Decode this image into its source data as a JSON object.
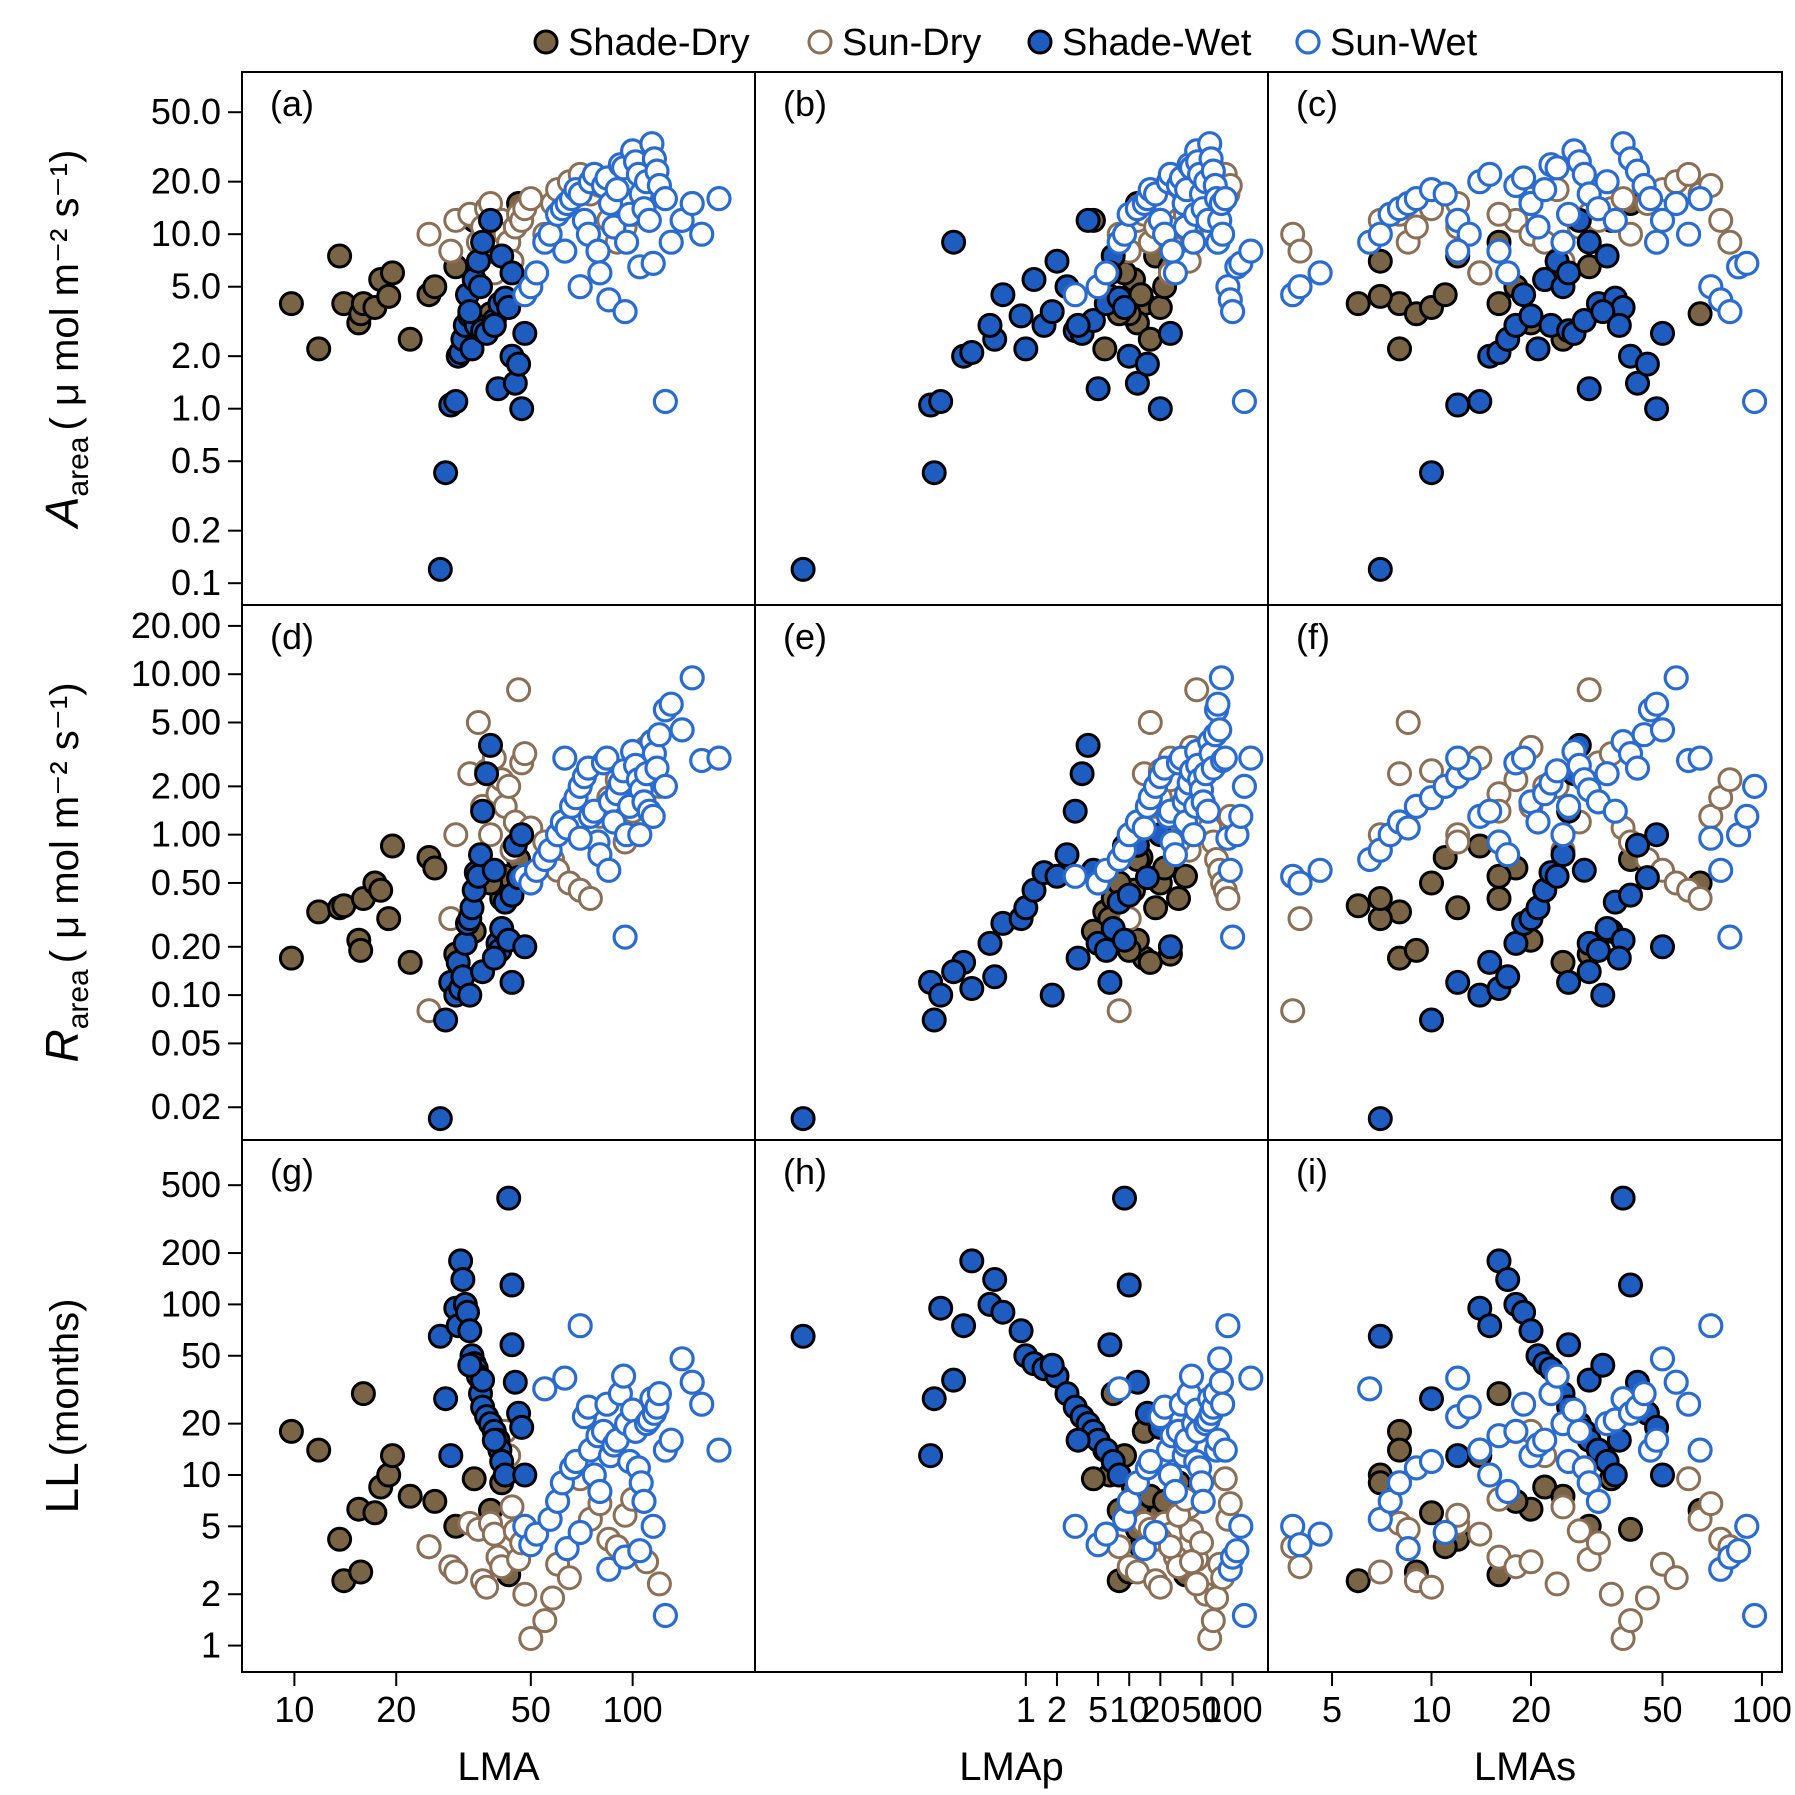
{
  "colors": {
    "shade_dry_fill": "#7a6446",
    "sun_dry_stroke": "#8a6e55",
    "shade_wet_fill": "#1f5cbf",
    "sun_wet_stroke": "#2a6bd0",
    "frame": "#000000"
  },
  "legend": {
    "position": "top-center",
    "items": [
      {
        "label": "Shade-Dry",
        "style": "filled-brown"
      },
      {
        "label": "Sun-Dry",
        "style": "open-brown"
      },
      {
        "label": "Shade-Wet",
        "style": "filled-blue"
      },
      {
        "label": "Sun-Wet",
        "style": "open-blue"
      }
    ]
  },
  "axes": {
    "rows": [
      {
        "key": "A",
        "title_main": "A",
        "title_sub": "area",
        "title_units": "( μ mol m⁻² s⁻¹)",
        "scale": "log",
        "ticks": [
          "0.1",
          "0.2",
          "0.5",
          "1.0",
          "2.0",
          "5.0",
          "10.0",
          "20.0",
          "50.0"
        ]
      },
      {
        "key": "R",
        "title_main": "R",
        "title_sub": "area",
        "title_units": "( μ mol m⁻² s⁻¹)",
        "scale": "log",
        "ticks": [
          "0.02",
          "0.05",
          "0.10",
          "0.20",
          "0.50",
          "1.00",
          "2.00",
          "5.00",
          "10.00",
          "20.00"
        ]
      },
      {
        "key": "LL",
        "title_main": "LL",
        "title_sub": "",
        "title_units": "(months)",
        "scale": "log",
        "ticks": [
          "1",
          "2",
          "5",
          "10",
          "20",
          "50",
          "100",
          "200",
          "500"
        ]
      }
    ],
    "cols": [
      {
        "key": "LMA",
        "title": "LMA",
        "scale": "log",
        "ticks": [
          "10",
          "20",
          "50",
          "100"
        ]
      },
      {
        "key": "LMAp",
        "title": "LMAp",
        "scale": "log",
        "ticks": [
          "1",
          "2",
          "5",
          "10",
          "20",
          "50",
          "100"
        ]
      },
      {
        "key": "LMAs",
        "title": "LMAs",
        "scale": "log",
        "ticks": [
          "5",
          "10",
          "20",
          "50",
          "100"
        ]
      }
    ]
  },
  "panel_labels": [
    "(a)",
    "(b)",
    "(c)",
    "(d)",
    "(e)",
    "(f)",
    "(g)",
    "(h)",
    "(i)"
  ],
  "chart_data": {
    "type": "scatter",
    "grid": false,
    "xscale": "log",
    "yscale": "log",
    "xlim": {
      "LMA": [
        7,
        230
      ],
      "LMAp": [
        0.0024,
        220
      ],
      "LMAs": [
        3.2,
        115
      ]
    },
    "ylim": {
      "A": [
        0.075,
        85
      ],
      "R": [
        0.0125,
        27
      ],
      "LL": [
        0.7,
        920
      ]
    },
    "series": [
      {
        "name": "Shade-Dry",
        "x_LMA": [
          9.8,
          11.8,
          13.6,
          14,
          15.5,
          15.7,
          16,
          17.3,
          18,
          19,
          19.5,
          22,
          25,
          26,
          30,
          34,
          41,
          43,
          46,
          38
        ],
        "x_LMAp": [
          14,
          5.8,
          18,
          8,
          12,
          10,
          7,
          20,
          11,
          6.5,
          9,
          16,
          13,
          22,
          25,
          4.5,
          30,
          35,
          12,
          8
        ],
        "x_LMAs": [
          8,
          8,
          12,
          6,
          20,
          9,
          16,
          10,
          22,
          7,
          14,
          25,
          11,
          18,
          30,
          35,
          7,
          16,
          40,
          65
        ],
        "y_A": [
          4.0,
          2.2,
          7.5,
          4.0,
          3.1,
          3.5,
          4.0,
          3.8,
          5.5,
          4.4,
          6.0,
          2.5,
          4.5,
          5.0,
          6.5,
          12,
          7,
          9,
          15,
          3.5
        ],
        "y_R": [
          0.17,
          0.33,
          0.35,
          0.36,
          0.22,
          0.19,
          0.4,
          0.5,
          0.45,
          0.3,
          0.85,
          0.16,
          0.72,
          0.62,
          0.18,
          0.25,
          0.4,
          0.55,
          0.7,
          0.5
        ],
        "y_LL": [
          18,
          14,
          4.2,
          2.4,
          6.3,
          2.7,
          30,
          6,
          8.5,
          10,
          13,
          7.5,
          3.8,
          7,
          5,
          9.5,
          9,
          2.6,
          4.8,
          6.2
        ]
      },
      {
        "name": "Sun-Dry",
        "x_LMA": [
          25,
          29,
          30,
          33,
          35,
          36,
          37,
          38,
          39,
          40,
          41,
          42,
          43,
          44,
          45,
          46,
          47,
          48,
          50,
          55,
          58,
          60,
          65,
          70,
          75,
          80,
          85,
          90,
          95,
          100,
          110,
          120
        ],
        "x_LMAp": [
          8,
          10,
          12,
          14,
          16,
          18,
          20,
          22,
          25,
          28,
          30,
          32,
          35,
          38,
          40,
          45,
          50,
          55,
          60,
          65,
          70,
          75,
          80,
          85,
          90,
          95,
          20,
          25,
          30,
          35,
          40,
          45
        ],
        "x_LMAs": [
          3.8,
          4.0,
          7,
          8,
          8.5,
          9,
          10,
          12,
          14,
          16,
          18,
          20,
          22,
          25,
          28,
          30,
          32,
          35,
          38,
          40,
          45,
          50,
          55,
          60,
          65,
          70,
          75,
          80,
          12,
          16,
          20,
          24
        ],
        "y_A": [
          10,
          8,
          12,
          13,
          9,
          11,
          14,
          15,
          6,
          8,
          12,
          10,
          9,
          7,
          11,
          13,
          12,
          14,
          16,
          10,
          15,
          18,
          20,
          22,
          17,
          19,
          12,
          9,
          11,
          13,
          16,
          18
        ],
        "y_R": [
          0.08,
          0.3,
          1.0,
          2.4,
          5.0,
          1.5,
          2.5,
          1.0,
          3.0,
          1.8,
          2.2,
          1.5,
          2.0,
          0.8,
          1.2,
          8.0,
          2.8,
          3.2,
          1.1,
          0.9,
          0.7,
          0.6,
          0.5,
          0.45,
          0.4,
          1.3,
          1.7,
          2.2,
          0.9,
          1.4,
          3.5,
          2.0
        ],
        "y_LL": [
          3.8,
          2.9,
          2.7,
          5.2,
          4.8,
          2.4,
          2.2,
          5.2,
          4.5,
          3.3,
          2.9,
          18,
          13,
          6.5,
          4.7,
          3.2,
          4.0,
          2.0,
          1.1,
          1.4,
          1.9,
          3.0,
          2.5,
          9.5,
          5.5,
          6.8,
          4.2,
          3.8,
          5.8,
          7.2,
          3.1,
          2.3
        ]
      },
      {
        "name": "Shade-Wet",
        "x_LMA": [
          27,
          28,
          29,
          30,
          30.5,
          31,
          31.5,
          32,
          32.5,
          33,
          33.5,
          34,
          34.5,
          35,
          35.5,
          36,
          37,
          38,
          39,
          40,
          40.5,
          41,
          42,
          43,
          44,
          45,
          46,
          47,
          48,
          36,
          33,
          39,
          44
        ],
        "x_LMAp": [
          0.007,
          0.13,
          0.12,
          0.15,
          0.25,
          0.3,
          0.5,
          0.45,
          0.6,
          0.9,
          1.0,
          1.2,
          1.5,
          2.0,
          2.5,
          3.0,
          3.5,
          4.0,
          4.5,
          5.0,
          6.0,
          7.0,
          8.0,
          9.0,
          10,
          12,
          15,
          20,
          25,
          0.2,
          1.8,
          3.2,
          6.5
        ],
        "x_LMAs": [
          7,
          10,
          12,
          14,
          15,
          16,
          17,
          18,
          19,
          20,
          21,
          22,
          23,
          24,
          25,
          26,
          27,
          28,
          29,
          30,
          32,
          34,
          36,
          38,
          40,
          42,
          45,
          48,
          50,
          30,
          33,
          37,
          26
        ],
        "y_A": [
          0.12,
          0.43,
          1.05,
          1.1,
          2.0,
          2.1,
          2.5,
          3.0,
          4.5,
          3.4,
          2.2,
          5.5,
          3.0,
          7.0,
          5.0,
          2.8,
          2.7,
          12,
          3.2,
          1.3,
          4.0,
          7.5,
          4.3,
          3.8,
          2.0,
          1.4,
          1.8,
          1.0,
          2.7,
          9.0,
          3.6,
          3.0,
          6.0
        ],
        "y_R": [
          0.017,
          0.07,
          0.12,
          0.1,
          0.16,
          0.11,
          0.13,
          0.21,
          0.28,
          0.3,
          0.35,
          0.45,
          0.58,
          0.55,
          0.75,
          1.4,
          2.4,
          3.6,
          0.6,
          0.21,
          0.19,
          0.26,
          0.38,
          0.22,
          0.42,
          0.86,
          0.54,
          1.0,
          0.2,
          0.14,
          0.1,
          0.17,
          0.12
        ],
        "y_LL": [
          65,
          28,
          13,
          95,
          75,
          180,
          140,
          100,
          90,
          70,
          50,
          45,
          42,
          38,
          30,
          25,
          22,
          20,
          18,
          16,
          14,
          12,
          10,
          420,
          130,
          35,
          23,
          19,
          10,
          36,
          44,
          16,
          58
        ]
      },
      {
        "name": "Sun-Wet",
        "x_LMA": [
          48,
          50,
          52,
          55,
          57,
          60,
          62,
          64,
          66,
          68,
          70,
          72,
          74,
          75,
          77,
          79,
          80,
          82,
          84,
          86,
          88,
          90,
          92,
          94,
          96,
          98,
          100,
          102,
          104,
          106,
          108,
          110,
          112,
          114,
          116,
          118,
          120,
          125,
          130,
          140,
          150,
          160,
          180,
          70,
          85,
          95,
          105,
          115,
          125,
          63
        ],
        "x_LMAp": [
          3,
          5,
          6,
          8,
          9,
          10,
          12,
          14,
          15,
          16,
          18,
          20,
          22,
          24,
          25,
          26,
          28,
          30,
          32,
          34,
          35,
          36,
          38,
          40,
          42,
          44,
          45,
          46,
          48,
          50,
          52,
          55,
          58,
          60,
          62,
          65,
          68,
          70,
          72,
          75,
          78,
          80,
          85,
          90,
          95,
          100,
          110,
          120,
          130,
          150
        ],
        "x_LMAs": [
          3.8,
          4.0,
          4.6,
          6.5,
          7,
          7.5,
          8,
          8.5,
          9,
          10,
          11,
          12,
          13,
          14,
          15,
          16,
          17,
          18,
          19,
          20,
          21,
          22,
          23,
          24,
          25,
          26,
          27,
          28,
          29,
          30,
          32,
          34,
          36,
          38,
          40,
          42,
          44,
          46,
          48,
          50,
          55,
          60,
          65,
          70,
          75,
          80,
          85,
          90,
          95,
          12
        ],
        "y_A": [
          4.5,
          5.0,
          6.0,
          9.0,
          10,
          13,
          14,
          15,
          16,
          18,
          17,
          12,
          10,
          20,
          22,
          8,
          6,
          19,
          21,
          15,
          11,
          18,
          25,
          24,
          9,
          13,
          30,
          26,
          22,
          17,
          14,
          20,
          12,
          33,
          27,
          23,
          19,
          16,
          9,
          12,
          15,
          10,
          16,
          5,
          4.2,
          3.6,
          6.5,
          6.8,
          1.1,
          8.0
        ],
        "y_R": [
          0.55,
          0.5,
          0.6,
          0.7,
          0.8,
          1.0,
          1.2,
          1.1,
          1.5,
          1.7,
          2.0,
          2.3,
          2.6,
          1.3,
          1.4,
          0.9,
          0.75,
          2.8,
          3.0,
          1.6,
          1.2,
          1.8,
          2.1,
          2.5,
          1.0,
          1.5,
          3.3,
          2.7,
          2.2,
          1.9,
          1.6,
          2.4,
          1.4,
          3.8,
          3.2,
          2.6,
          4.2,
          6.0,
          6.5,
          4.5,
          9.5,
          2.9,
          3.0,
          0.95,
          0.6,
          0.23,
          1.0,
          1.3,
          2.0,
          3.0
        ],
        "y_LL": [
          5.0,
          3.9,
          4.5,
          32,
          5.5,
          7.0,
          9.0,
          3.7,
          11,
          12,
          4.6,
          22,
          25,
          14,
          10,
          17,
          8,
          18,
          26,
          13,
          15,
          16,
          30,
          38,
          20,
          12,
          24,
          18,
          11,
          9,
          7,
          20,
          21,
          28,
          23,
          25,
          30,
          14,
          16,
          48,
          35,
          26,
          14,
          75,
          2.8,
          3.3,
          3.6,
          5.0,
          1.5,
          37
        ]
      }
    ]
  }
}
